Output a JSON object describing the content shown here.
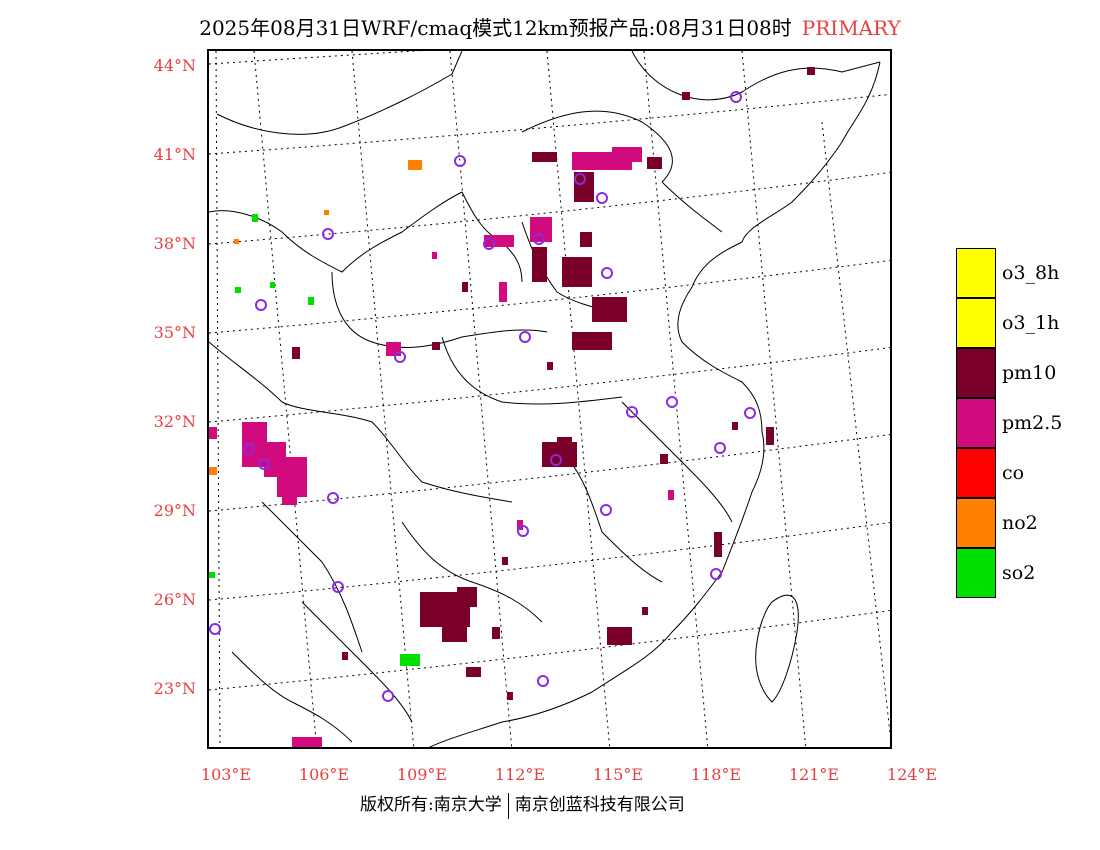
{
  "header": {
    "title": "2025年08月31日WRF/cmaq模式12km预报产品:08月31日08时",
    "tag": "PRIMARY"
  },
  "map": {
    "lat_labels": [
      "44°N",
      "41°N",
      "38°N",
      "35°N",
      "32°N",
      "29°N",
      "26°N",
      "23°N"
    ],
    "lon_labels": [
      "103°E",
      "106°E",
      "109°E",
      "112°E",
      "115°E",
      "118°E",
      "121°E",
      "124°E"
    ]
  },
  "legend": [
    {
      "label": "o3_8h",
      "color": "#ffff00"
    },
    {
      "label": "o3_1h",
      "color": "#ffff00"
    },
    {
      "label": "pm10",
      "color": "#7a0029"
    },
    {
      "label": "pm2.5",
      "color": "#d10a7d"
    },
    {
      "label": "co",
      "color": "#ff0000"
    },
    {
      "label": "no2",
      "color": "#ff7f00"
    },
    {
      "label": "so2",
      "color": "#00e000"
    }
  ],
  "footer": {
    "left": "版权所有:南京大学",
    "right": "南京创蓝科技有限公司"
  }
}
